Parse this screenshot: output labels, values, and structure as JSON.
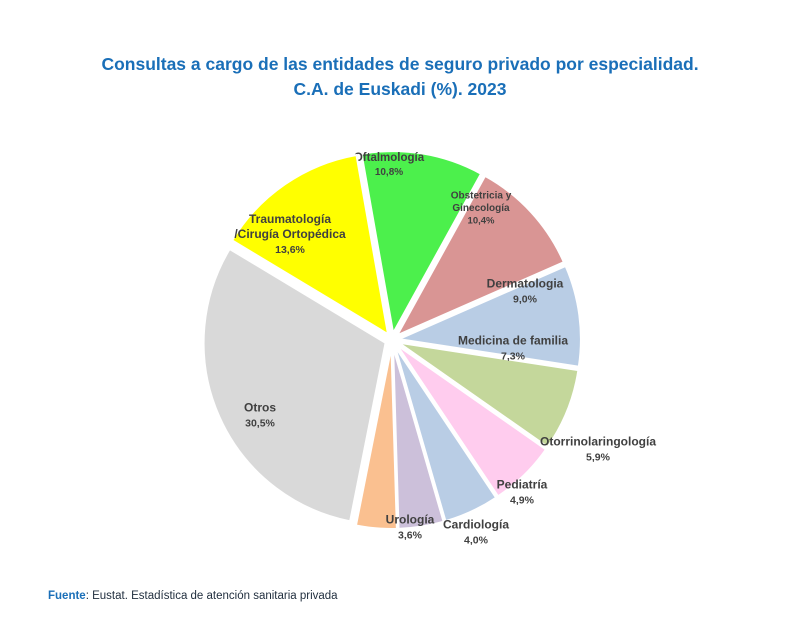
{
  "title": {
    "line1": "Consultas a cargo de las entidades de seguro privado por especialidad.",
    "line2": "C.A. de Euskadi (%). 2023"
  },
  "source": {
    "label": "Fuente",
    "text": ": Eustat. Estadística de atención sanitaria privada"
  },
  "chart_data": {
    "type": "pie",
    "title": "Consultas a cargo de las entidades de seguro privado por especialidad. C.A. de Euskadi (%). 2023",
    "unit": "%",
    "slices": [
      {
        "name": "Oftalmología",
        "label_lines": [
          "Oftalmología"
        ],
        "value": 10.8,
        "value_label": "10,8%",
        "color": "#4cf04c"
      },
      {
        "name": "Obstetricia y Ginecología",
        "label_lines": [
          "Obstetricia y",
          "Ginecología"
        ],
        "value": 10.4,
        "value_label": "10,4%",
        "color": "#d99594"
      },
      {
        "name": "Dermatologia",
        "label_lines": [
          "Dermatologia"
        ],
        "value": 9.0,
        "value_label": "9,0%",
        "color": "#b9cde5"
      },
      {
        "name": "Medicina de familia",
        "label_lines": [
          "Medicina de familia"
        ],
        "value": 7.3,
        "value_label": "7,3%",
        "color": "#c4d79b"
      },
      {
        "name": "Otorrinolaringología",
        "label_lines": [
          "Otorrinolaringología"
        ],
        "value": 5.9,
        "value_label": "5,9%",
        "color": "#ffccee"
      },
      {
        "name": "Pediatría",
        "label_lines": [
          "Pediatría"
        ],
        "value": 4.9,
        "value_label": "4,9%",
        "color": "#b9cde5"
      },
      {
        "name": "Cardiología",
        "label_lines": [
          "Cardiología"
        ],
        "value": 4.0,
        "value_label": "4,0%",
        "color": "#ccc0da"
      },
      {
        "name": "Urología",
        "label_lines": [
          "Urología"
        ],
        "value": 3.6,
        "value_label": "3,6%",
        "color": "#fac090"
      },
      {
        "name": "Otros",
        "label_lines": [
          "Otros"
        ],
        "value": 30.5,
        "value_label": "30,5%",
        "color": "#d9d9d9"
      },
      {
        "name": "Traumatología /Cirugía Ortopédica",
        "label_lines": [
          "Traumatología",
          "/Cirugía Ortopédica"
        ],
        "value": 13.6,
        "value_label": "13,6%",
        "color": "#ffff00"
      }
    ]
  }
}
